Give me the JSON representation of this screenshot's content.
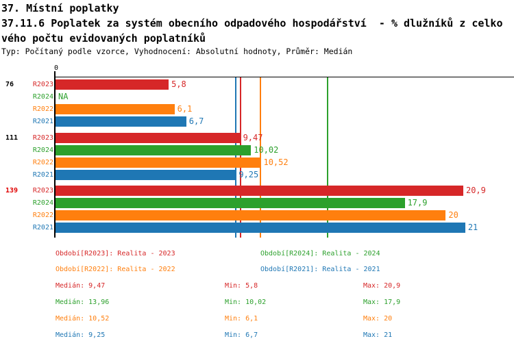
{
  "header": {
    "title_line1": "37. Místní poplatky",
    "title_line2": "37.11.6 Poplatek za systém obecního odpadového hospodářství  - % dlužníků z celko",
    "title_line3": "vého počtu evidovaných poplatníků",
    "meta": "Typ: Počítaný podle vzorce, Vyhodnocení: Absolutní hodnoty, Průměr: Medián"
  },
  "colors": {
    "R2023": "#d62728",
    "R2024": "#2ca02c",
    "R2022": "#ff7f0e",
    "R2021": "#1f77b4",
    "group_label_default": "#000000",
    "group_label_highlight": "#e00000",
    "axis": "#000000"
  },
  "chart_data": {
    "type": "bar",
    "orientation": "horizontal",
    "title": "37.11.6 Poplatek za systém obecního odpadového hospodářství - % dlužníků z celkového počtu evidovaných poplatníků",
    "xlabel": "",
    "ylabel": "",
    "xlim": [
      0,
      23.5
    ],
    "grid": false,
    "x_axis": {
      "zero_label": "0"
    },
    "series_order": [
      "R2023",
      "R2024",
      "R2022",
      "R2021"
    ],
    "groups": [
      {
        "label": "76",
        "label_color": "#000000",
        "values": {
          "R2023": 5.8,
          "R2024": null,
          "R2022": 6.1,
          "R2021": 6.7
        },
        "value_labels": {
          "R2023": "5,8",
          "R2024": "NA",
          "R2022": "6,1",
          "R2021": "6,7"
        }
      },
      {
        "label": "111",
        "label_color": "#000000",
        "values": {
          "R2023": 9.47,
          "R2024": 10.02,
          "R2022": 10.52,
          "R2021": 9.25
        },
        "value_labels": {
          "R2023": "9,47",
          "R2024": "10,02",
          "R2022": "10,52",
          "R2021": "9,25"
        }
      },
      {
        "label": "139",
        "label_color": "#e00000",
        "values": {
          "R2023": 20.9,
          "R2024": 17.9,
          "R2022": 20,
          "R2021": 21
        },
        "value_labels": {
          "R2023": "20,9",
          "R2024": "17,9",
          "R2022": "20",
          "R2021": "21"
        }
      }
    ],
    "median_lines": {
      "R2023": 9.47,
      "R2024": 13.96,
      "R2022": 10.52,
      "R2021": 9.25
    }
  },
  "legend": [
    {
      "series": "R2023",
      "label": "Období[R2023]: Realita - 2023"
    },
    {
      "series": "R2024",
      "label": "Období[R2024]: Realita - 2024"
    },
    {
      "series": "R2022",
      "label": "Období[R2022]: Realita - 2022"
    },
    {
      "series": "R2021",
      "label": "Období[R2021]: Realita - 2021"
    }
  ],
  "stats": [
    {
      "series": "R2023",
      "median": "Medián: 9,47",
      "min": "Min: 5,8",
      "max": "Max: 20,9"
    },
    {
      "series": "R2024",
      "median": "Medián: 13,96",
      "min": "Min: 10,02",
      "max": "Max: 17,9"
    },
    {
      "series": "R2022",
      "median": "Medián: 10,52",
      "min": "Min: 6,1",
      "max": "Max: 20"
    },
    {
      "series": "R2021",
      "median": "Medián: 9,25",
      "min": "Min: 6,7",
      "max": "Max: 21"
    }
  ]
}
